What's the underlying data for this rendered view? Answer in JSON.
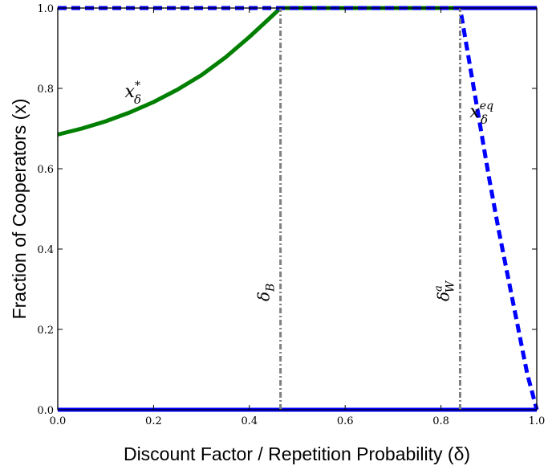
{
  "chart_data": {
    "type": "line",
    "title": "",
    "xlabel": "Discount Factor / Repetition Probability (δ)",
    "ylabel": "Fraction of Cooperators (x)",
    "xlim": [
      0.0,
      1.0
    ],
    "ylim": [
      0.0,
      1.0
    ],
    "x_ticks": [
      "0.0",
      "0.2",
      "0.4",
      "0.6",
      "0.8",
      "1.0"
    ],
    "y_ticks": [
      "0.0",
      "0.2",
      "0.4",
      "0.6",
      "0.8",
      "1.0"
    ],
    "grid": false,
    "series": [
      {
        "name": "x_δ^*",
        "color": "#007f00",
        "style": "solid",
        "points": [
          [
            0.0,
            0.685
          ],
          [
            0.05,
            0.7
          ],
          [
            0.1,
            0.718
          ],
          [
            0.15,
            0.74
          ],
          [
            0.2,
            0.766
          ],
          [
            0.25,
            0.797
          ],
          [
            0.3,
            0.833
          ],
          [
            0.35,
            0.877
          ],
          [
            0.4,
            0.928
          ],
          [
            0.44,
            0.972
          ],
          [
            0.465,
            1.0
          ],
          [
            0.84,
            1.0
          ]
        ]
      },
      {
        "name": "x_δ^eq",
        "color": "#0000ff",
        "style": "dashed",
        "points": [
          [
            0.0,
            1.0
          ],
          [
            0.84,
            1.0
          ],
          [
            0.86,
            0.86
          ],
          [
            0.88,
            0.72
          ],
          [
            0.9,
            0.58
          ],
          [
            0.92,
            0.45
          ],
          [
            0.94,
            0.33
          ],
          [
            0.96,
            0.21
          ],
          [
            0.98,
            0.09
          ],
          [
            1.0,
            0.0
          ]
        ]
      },
      {
        "color": "#0000ff",
        "style": "solid",
        "points": [
          [
            0.84,
            1.0
          ],
          [
            1.0,
            1.0
          ]
        ]
      },
      {
        "color": "#0000ff",
        "style": "solid",
        "points": [
          [
            0.0,
            0.0
          ],
          [
            1.0,
            0.0
          ]
        ]
      }
    ],
    "vlines": [
      {
        "x": 0.465,
        "label": "δ_B",
        "color": "#808080",
        "style": "dashdot"
      },
      {
        "x": 0.84,
        "label": "δ_W^a",
        "color": "#808080",
        "style": "dashdot"
      }
    ],
    "annotations": [
      {
        "text": "x",
        "sub": "δ",
        "sup": "*",
        "x": 0.16,
        "y": 0.77
      },
      {
        "text": "x",
        "sub": "δ",
        "sup": "eq",
        "x": 0.88,
        "y": 0.72
      }
    ]
  }
}
